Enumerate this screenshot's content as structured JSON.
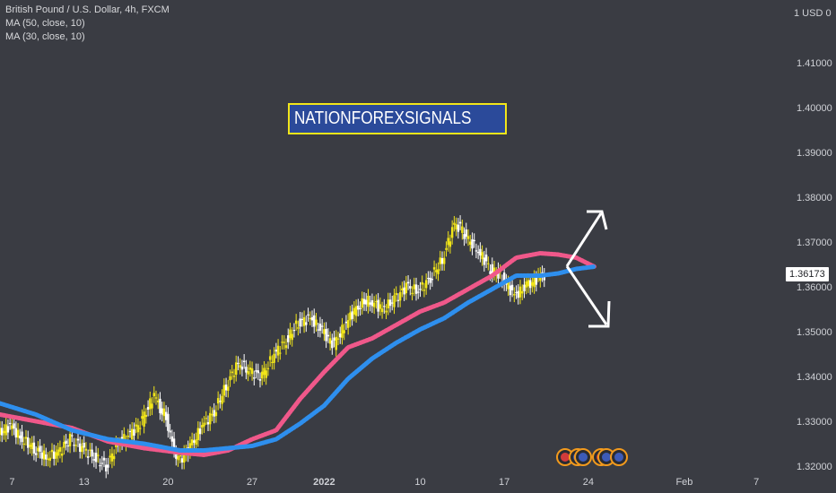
{
  "legend": {
    "symbol": "British Pound / U.S. Dollar, 4h, FXCM",
    "ma1": "MA (50, close, 10)",
    "ma2": "MA (30, close, 10)"
  },
  "watermark": "NATIONFOREXSIGNALS",
  "currency_label": "1 USD 0",
  "last_price": "1.36173",
  "colors": {
    "background": "#3a3c43",
    "candles": "#f2e619",
    "ma_fast": "#f0588a",
    "ma_slow": "#2e8fee",
    "banner_bg": "#2b4a9a",
    "banner_border": "#f2e619"
  },
  "chart_data": {
    "type": "line",
    "title": "British Pound / U.S. Dollar, 4h, FXCM",
    "ylim": [
      1.318,
      1.42
    ],
    "yticks": [
      "1.32000",
      "1.33000",
      "1.34000",
      "1.35000",
      "1.36000",
      "1.37000",
      "1.38000",
      "1.39000",
      "1.40000",
      "1.41000"
    ],
    "yticks_values": [
      1.32,
      1.33,
      1.34,
      1.35,
      1.36,
      1.37,
      1.38,
      1.39,
      1.4,
      1.41
    ],
    "xticks": [
      "7",
      "13",
      "20",
      "27",
      "2022",
      "10",
      "17",
      "24",
      "Feb",
      "7"
    ],
    "xticks_days": [
      0,
      6,
      13,
      20,
      26,
      34,
      41,
      48,
      56,
      62
    ],
    "x_range_days": [
      -1,
      64
    ],
    "grid": false,
    "series": [
      {
        "name": "MA (50, close, 10)",
        "x": [
          -1,
          2,
          5,
          8,
          11,
          14,
          16,
          18,
          20,
          22,
          24,
          26,
          28,
          30,
          32,
          34,
          36,
          38,
          40,
          42,
          44,
          45.5,
          47,
          48.5
        ],
        "values": [
          1.3315,
          1.33,
          1.3285,
          1.3255,
          1.324,
          1.323,
          1.3225,
          1.3235,
          1.326,
          1.328,
          1.335,
          1.341,
          1.3465,
          1.3485,
          1.3515,
          1.3545,
          1.3565,
          1.3595,
          1.3625,
          1.3665,
          1.3675,
          1.3672,
          1.3665,
          1.3645
        ]
      },
      {
        "name": "MA (30, close, 10)",
        "x": [
          -1,
          2,
          5,
          8,
          11,
          14,
          16,
          18,
          20,
          22,
          24,
          26,
          28,
          30,
          32,
          34,
          36,
          38,
          40,
          42,
          44,
          45.5,
          47,
          48.5
        ],
        "values": [
          1.334,
          1.3315,
          1.328,
          1.326,
          1.325,
          1.3235,
          1.3235,
          1.324,
          1.3245,
          1.326,
          1.3295,
          1.3335,
          1.3395,
          1.344,
          1.3475,
          1.3505,
          1.353,
          1.3565,
          1.3595,
          1.3625,
          1.3625,
          1.363,
          1.364,
          1.3645
        ]
      },
      {
        "name": "price",
        "x": [
          -1,
          0,
          1,
          2,
          3,
          4,
          5,
          6,
          7,
          8,
          9,
          10,
          11,
          12,
          12.5,
          13,
          13.5,
          14,
          15,
          16,
          17,
          18,
          19,
          20,
          21,
          22,
          23,
          24,
          25,
          26,
          27,
          28,
          29,
          30,
          31,
          32,
          33,
          34,
          35,
          36,
          37,
          37.5,
          38,
          39,
          40,
          41,
          42,
          43,
          44,
          44.5
        ],
        "values": [
          1.327,
          1.329,
          1.326,
          1.324,
          1.322,
          1.323,
          1.326,
          1.324,
          1.322,
          1.32,
          1.325,
          1.327,
          1.33,
          1.336,
          1.333,
          1.331,
          1.325,
          1.321,
          1.324,
          1.329,
          1.332,
          1.338,
          1.343,
          1.341,
          1.34,
          1.345,
          1.348,
          1.352,
          1.353,
          1.35,
          1.347,
          1.352,
          1.356,
          1.357,
          1.355,
          1.357,
          1.36,
          1.359,
          1.362,
          1.366,
          1.374,
          1.373,
          1.371,
          1.368,
          1.364,
          1.362,
          1.358,
          1.36,
          1.362,
          1.3625
        ]
      }
    ]
  }
}
